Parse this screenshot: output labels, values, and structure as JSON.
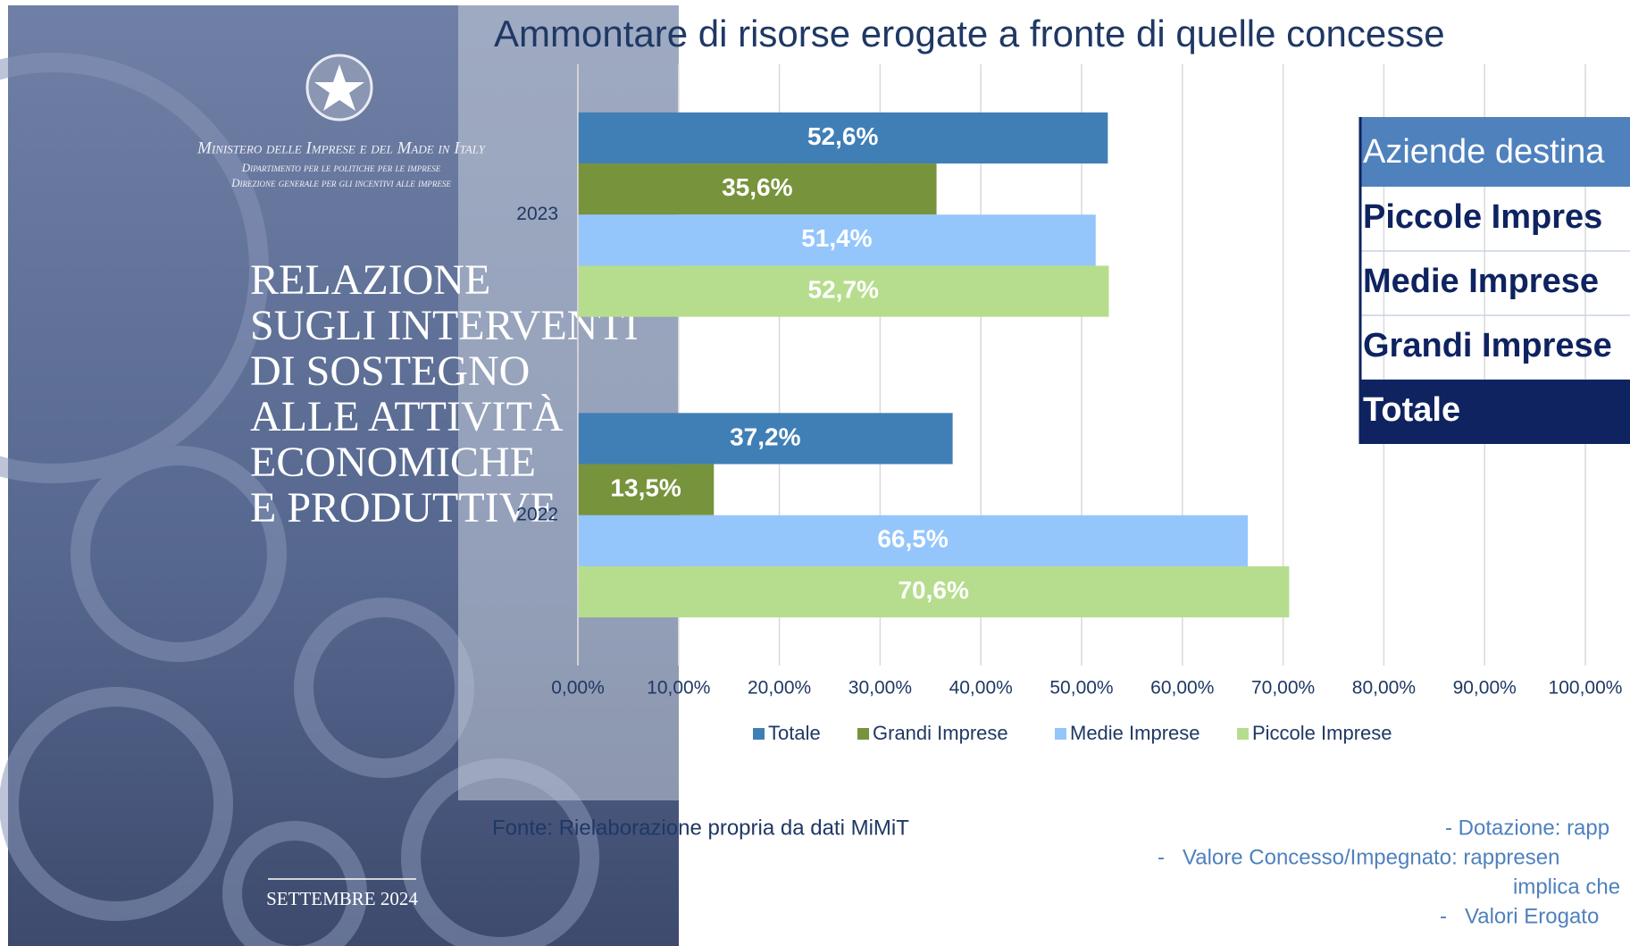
{
  "chart_data": {
    "type": "hbar",
    "title": "Ammontare di risorse erogate a fronte di quelle concesse",
    "categories": [
      "2023",
      "2022"
    ],
    "series": [
      {
        "name": "Totale",
        "color": "#3f7fb6",
        "values": [
          52.6,
          37.2
        ],
        "value_labels": [
          "52,6%",
          "37,2%"
        ]
      },
      {
        "name": "Grandi Imprese",
        "color": "#77933c",
        "values": [
          35.6,
          13.5
        ],
        "value_labels": [
          "35,6%",
          "13,5%"
        ]
      },
      {
        "name": "Medie Imprese",
        "color": "#94c6fb",
        "values": [
          51.4,
          66.5
        ],
        "value_labels": [
          "51,4%",
          "66,5%"
        ]
      },
      {
        "name": "Piccole Imprese",
        "color": "#b6dd8d",
        "values": [
          52.7,
          70.6
        ],
        "value_labels": [
          "52,7%",
          "70,6%"
        ]
      }
    ],
    "xlim": [
      0,
      100
    ],
    "xticks": [
      {
        "value": 0,
        "label": "0,00%"
      },
      {
        "value": 10,
        "label": "10,00%"
      },
      {
        "value": 20,
        "label": "20,00%"
      },
      {
        "value": 30,
        "label": "30,00%"
      },
      {
        "value": 40,
        "label": "40,00%"
      },
      {
        "value": 50,
        "label": "50,00%"
      },
      {
        "value": 60,
        "label": "60,00%"
      },
      {
        "value": 70,
        "label": "70,00%"
      },
      {
        "value": 80,
        "label": "80,00%"
      },
      {
        "value": 90,
        "label": "90,00%"
      },
      {
        "value": 100,
        "label": "100,00%"
      }
    ],
    "grid": true,
    "legend": "bottom",
    "source": "Fonte: Rielaborazione propria da dati MiMiT"
  },
  "cover": {
    "ministry": "Ministero delle Imprese e del Made in Italy",
    "department": "Dipartimento per le politiche per le imprese",
    "direction": "Direzione generale per gli incentivi alle imprese",
    "title_lines": [
      "RELAZIONE",
      "SUGLI INTERVENTI",
      "DI SOSTEGNO",
      "ALLE ATTIVITÀ",
      "ECONOMICHE",
      "E PRODUTTIVE"
    ],
    "date": "SETTEMBRE 2024"
  },
  "table": {
    "header": "Aziende destina",
    "rows": [
      "Piccole Impres",
      "Medie Imprese",
      "Grandi Imprese"
    ],
    "total": "Totale"
  },
  "notes": [
    "- Dotazione: rapp",
    "-   Valore Concesso/Impegnato: rappresen",
    "implica che",
    "-   Valori Erogato"
  ]
}
